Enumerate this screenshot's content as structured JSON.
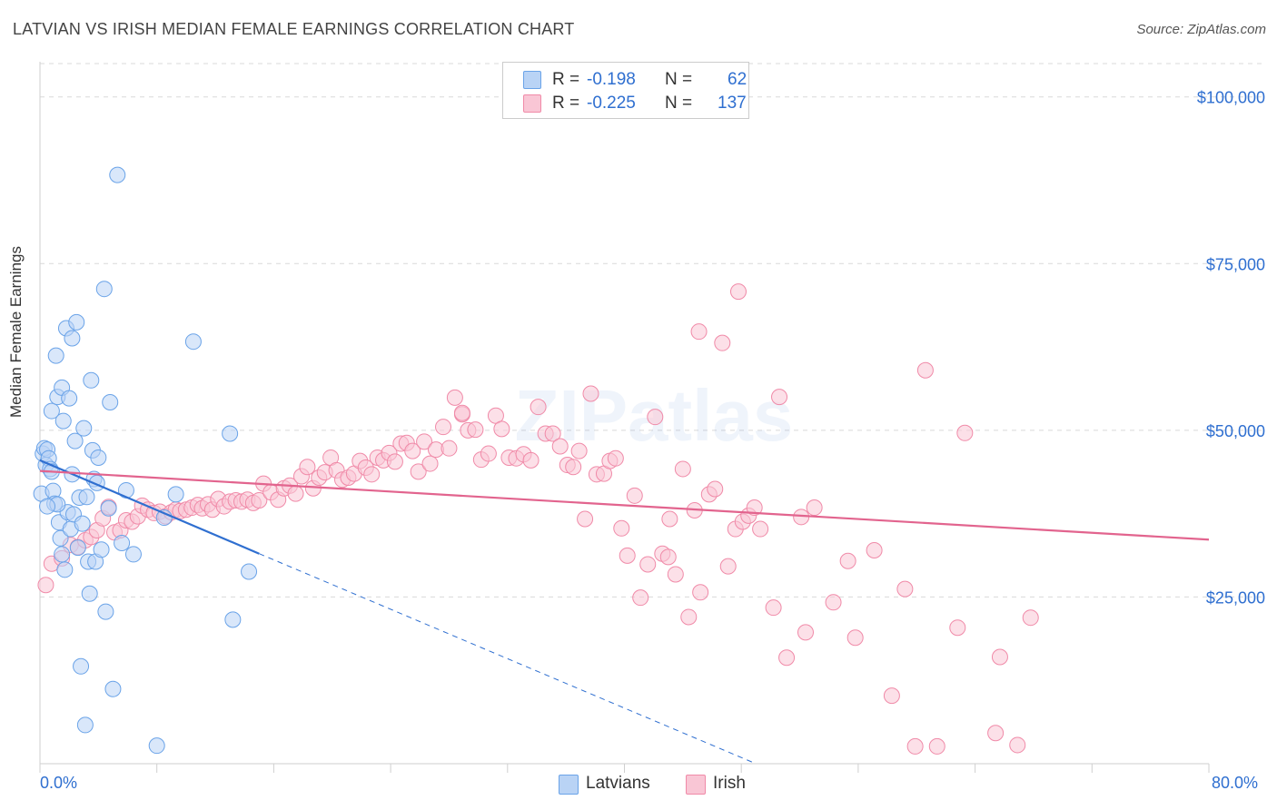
{
  "title": "LATVIAN VS IRISH MEDIAN FEMALE EARNINGS CORRELATION CHART",
  "source": "Source: ZipAtlas.com",
  "watermark": "ZIPatlas",
  "colors": {
    "latvians": "#6aa3e8",
    "latvians_fill": "#b9d3f5",
    "irish": "#f08aa8",
    "irish_fill": "#f9c6d5",
    "latvians_line": "#2f6fd0",
    "irish_line": "#e2648e",
    "tick_label": "#2f6fd0"
  },
  "legend": {
    "rows": [
      {
        "series": "latvians",
        "r_label": "R =",
        "r_value": "-0.198",
        "n_label": "N =",
        "n_value": "62"
      },
      {
        "series": "irish",
        "r_label": "R =",
        "r_value": "-0.225",
        "n_label": "N =",
        "n_value": "137"
      }
    ],
    "bottom": [
      {
        "series": "latvians",
        "label": "Latvians"
      },
      {
        "series": "irish",
        "label": "Irish"
      }
    ]
  },
  "chart_data": {
    "type": "scatter",
    "title": "LATVIAN VS IRISH MEDIAN FEMALE EARNINGS CORRELATION CHART",
    "xlabel": "",
    "ylabel": "Median Female Earnings",
    "xlim": [
      0,
      80
    ],
    "ylim": [
      0,
      105000
    ],
    "x_tick_labels": [
      "0.0%",
      "80.0%"
    ],
    "y_ticks": [
      25000,
      50000,
      75000,
      100000
    ],
    "y_tick_labels": [
      "$25,000",
      "$50,000",
      "$75,000",
      "$100,000"
    ],
    "grid": true,
    "series": [
      {
        "name": "Latvians",
        "r": -0.198,
        "n": 62,
        "trend": {
          "x0": 0,
          "y0": 45500,
          "x1": 15,
          "y1": 31500,
          "dashed_to_x": 49,
          "dashed_to_y": -200
        },
        "points": [
          [
            0.1,
            40500
          ],
          [
            0.2,
            46500
          ],
          [
            0.3,
            47300
          ],
          [
            0.4,
            44800
          ],
          [
            0.5,
            47100
          ],
          [
            0.6,
            45800
          ],
          [
            0.7,
            44200
          ],
          [
            0.8,
            52900
          ],
          [
            0.9,
            40900
          ],
          [
            1.0,
            39000
          ],
          [
            1.1,
            61200
          ],
          [
            1.2,
            55000
          ],
          [
            1.3,
            36200
          ],
          [
            1.4,
            33800
          ],
          [
            1.5,
            56400
          ],
          [
            1.6,
            51400
          ],
          [
            1.7,
            29100
          ],
          [
            1.8,
            65300
          ],
          [
            1.9,
            37700
          ],
          [
            2.0,
            54800
          ],
          [
            2.1,
            35200
          ],
          [
            2.2,
            63800
          ],
          [
            2.3,
            37400
          ],
          [
            2.4,
            48400
          ],
          [
            2.5,
            66200
          ],
          [
            2.6,
            32400
          ],
          [
            2.7,
            39900
          ],
          [
            2.8,
            14600
          ],
          [
            2.9,
            36000
          ],
          [
            3.0,
            50300
          ],
          [
            3.1,
            5800
          ],
          [
            3.2,
            40000
          ],
          [
            3.3,
            30300
          ],
          [
            3.4,
            25500
          ],
          [
            3.5,
            57500
          ],
          [
            3.6,
            47000
          ],
          [
            3.7,
            42700
          ],
          [
            3.8,
            30300
          ],
          [
            3.9,
            42100
          ],
          [
            4.0,
            45900
          ],
          [
            4.2,
            32100
          ],
          [
            4.4,
            71200
          ],
          [
            4.5,
            22800
          ],
          [
            4.7,
            38300
          ],
          [
            4.8,
            54200
          ],
          [
            5.0,
            11200
          ],
          [
            5.3,
            88300
          ],
          [
            5.6,
            33100
          ],
          [
            5.9,
            41000
          ],
          [
            6.4,
            31400
          ],
          [
            8.0,
            2700
          ],
          [
            8.5,
            36900
          ],
          [
            9.3,
            40400
          ],
          [
            10.5,
            63300
          ],
          [
            13.0,
            49500
          ],
          [
            13.2,
            21600
          ],
          [
            14.3,
            28800
          ],
          [
            0.8,
            43800
          ],
          [
            1.2,
            38900
          ],
          [
            2.2,
            43400
          ],
          [
            0.5,
            38600
          ],
          [
            1.5,
            31400
          ]
        ]
      },
      {
        "name": "Irish",
        "r": -0.225,
        "n": 137,
        "trend": {
          "x0": 0,
          "y0": 43900,
          "x1": 80,
          "y1": 33600
        },
        "points": [
          [
            0.4,
            26800
          ],
          [
            0.8,
            30000
          ],
          [
            1.5,
            30800
          ],
          [
            2.1,
            32800
          ],
          [
            2.6,
            32500
          ],
          [
            3.1,
            33500
          ],
          [
            3.5,
            34000
          ],
          [
            3.9,
            35000
          ],
          [
            4.3,
            36800
          ],
          [
            4.7,
            38500
          ],
          [
            5.1,
            34700
          ],
          [
            5.5,
            35000
          ],
          [
            5.9,
            36500
          ],
          [
            6.3,
            36300
          ],
          [
            6.7,
            37100
          ],
          [
            7.0,
            38700
          ],
          [
            7.4,
            38100
          ],
          [
            7.8,
            37600
          ],
          [
            8.2,
            37800
          ],
          [
            8.6,
            37100
          ],
          [
            9.0,
            37700
          ],
          [
            9.3,
            38100
          ],
          [
            9.6,
            37900
          ],
          [
            10.0,
            38100
          ],
          [
            10.4,
            38400
          ],
          [
            10.8,
            38800
          ],
          [
            11.1,
            38300
          ],
          [
            11.5,
            38900
          ],
          [
            11.8,
            38100
          ],
          [
            12.2,
            39700
          ],
          [
            12.6,
            38600
          ],
          [
            13.0,
            39300
          ],
          [
            13.4,
            39500
          ],
          [
            13.8,
            39300
          ],
          [
            14.2,
            39600
          ],
          [
            14.6,
            39100
          ],
          [
            15.0,
            39500
          ],
          [
            15.3,
            42000
          ],
          [
            15.8,
            40700
          ],
          [
            16.3,
            39600
          ],
          [
            16.7,
            41300
          ],
          [
            17.1,
            41700
          ],
          [
            17.5,
            40500
          ],
          [
            17.9,
            43100
          ],
          [
            18.3,
            44500
          ],
          [
            18.7,
            41300
          ],
          [
            19.1,
            42900
          ],
          [
            19.5,
            43700
          ],
          [
            19.9,
            45900
          ],
          [
            20.3,
            44000
          ],
          [
            20.7,
            42600
          ],
          [
            21.1,
            42900
          ],
          [
            21.5,
            43500
          ],
          [
            21.9,
            45400
          ],
          [
            22.3,
            44400
          ],
          [
            22.7,
            43400
          ],
          [
            23.1,
            45900
          ],
          [
            23.5,
            45500
          ],
          [
            23.9,
            46600
          ],
          [
            24.3,
            45300
          ],
          [
            24.7,
            48000
          ],
          [
            25.1,
            48100
          ],
          [
            25.5,
            46900
          ],
          [
            25.9,
            43800
          ],
          [
            26.3,
            48300
          ],
          [
            26.7,
            45000
          ],
          [
            27.1,
            47100
          ],
          [
            27.6,
            50500
          ],
          [
            28.0,
            47300
          ],
          [
            28.4,
            54900
          ],
          [
            28.9,
            52400
          ],
          [
            29.3,
            50000
          ],
          [
            29.8,
            50100
          ],
          [
            30.2,
            45600
          ],
          [
            30.7,
            46500
          ],
          [
            31.2,
            52200
          ],
          [
            31.6,
            50200
          ],
          [
            32.1,
            45900
          ],
          [
            32.6,
            45800
          ],
          [
            33.1,
            46400
          ],
          [
            33.6,
            45500
          ],
          [
            34.1,
            53500
          ],
          [
            34.6,
            49500
          ],
          [
            35.1,
            49500
          ],
          [
            35.6,
            47600
          ],
          [
            36.1,
            44800
          ],
          [
            36.5,
            44500
          ],
          [
            36.9,
            46900
          ],
          [
            37.3,
            36700
          ],
          [
            37.7,
            55500
          ],
          [
            38.1,
            43400
          ],
          [
            38.6,
            43500
          ],
          [
            39.0,
            45400
          ],
          [
            39.4,
            45800
          ],
          [
            39.8,
            35300
          ],
          [
            40.2,
            31200
          ],
          [
            40.7,
            40200
          ],
          [
            41.1,
            24900
          ],
          [
            41.6,
            29900
          ],
          [
            42.1,
            52000
          ],
          [
            42.6,
            31500
          ],
          [
            43.0,
            31000
          ],
          [
            43.1,
            36700
          ],
          [
            43.5,
            28400
          ],
          [
            44.0,
            44200
          ],
          [
            44.4,
            22000
          ],
          [
            44.8,
            38000
          ],
          [
            45.2,
            25700
          ],
          [
            45.8,
            40400
          ],
          [
            46.2,
            41200
          ],
          [
            46.7,
            63100
          ],
          [
            47.1,
            29600
          ],
          [
            47.6,
            35200
          ],
          [
            48.1,
            36300
          ],
          [
            48.5,
            37200
          ],
          [
            48.9,
            38400
          ],
          [
            49.3,
            35200
          ],
          [
            50.2,
            23400
          ],
          [
            50.6,
            55000
          ],
          [
            51.1,
            15900
          ],
          [
            52.1,
            37000
          ],
          [
            52.4,
            19700
          ],
          [
            53.0,
            38400
          ],
          [
            54.3,
            24200
          ],
          [
            55.3,
            30400
          ],
          [
            55.8,
            18900
          ],
          [
            57.1,
            32000
          ],
          [
            58.3,
            10200
          ],
          [
            59.2,
            26200
          ],
          [
            59.9,
            2600
          ],
          [
            60.6,
            59000
          ],
          [
            61.4,
            2600
          ],
          [
            62.8,
            20400
          ],
          [
            65.4,
            4600
          ],
          [
            65.7,
            16000
          ],
          [
            67.8,
            21900
          ],
          [
            63.3,
            49600
          ],
          [
            66.9,
            2800
          ],
          [
            28.9,
            52600
          ],
          [
            45.1,
            64800
          ],
          [
            47.8,
            70800
          ]
        ]
      }
    ]
  }
}
